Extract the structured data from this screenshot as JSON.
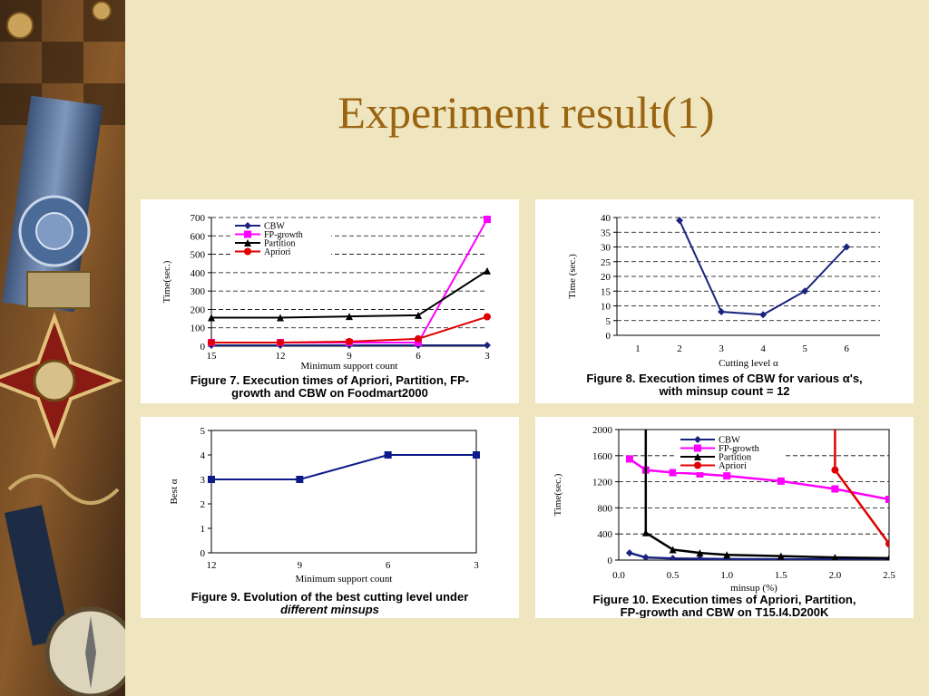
{
  "slide": {
    "title": "Experiment result(1)"
  },
  "colors": {
    "background": "#efe6c0",
    "title": "#9a6410",
    "cbw": "#1a237e",
    "fpgrowth": "#ff00ff",
    "partition": "#000000",
    "apriori": "#e00000",
    "fig8_line": "#1a237e",
    "fig9_line": "#0d1a8a"
  },
  "decor": {
    "side_art": "vintage medal, ribbon and compass collage"
  },
  "chart_data": [
    {
      "type": "line",
      "caption": [
        "Figure 7. Execution times of Apriori, Partition, FP-",
        "growth and CBW on Foodmart2000"
      ],
      "xlabel": "Minimum support count",
      "ylabel": "Time(sec.)",
      "categories": [
        "15",
        "12",
        "9",
        "6",
        "3"
      ],
      "ylim": [
        0,
        700
      ],
      "yticks": [
        "0",
        "100",
        "200",
        "300",
        "400",
        "500",
        "600",
        "700"
      ],
      "grid": "dashed horizontal",
      "legend": "top-left",
      "series": [
        {
          "name": "CBW",
          "marker": "diamond",
          "values": [
            5,
            5,
            5,
            5,
            5
          ]
        },
        {
          "name": "FP-growth",
          "marker": "square",
          "values": [
            20,
            20,
            20,
            20,
            690
          ]
        },
        {
          "name": "Partition",
          "marker": "triangle",
          "values": [
            155,
            155,
            162,
            168,
            410
          ]
        },
        {
          "name": "Apriori",
          "marker": "circle",
          "values": [
            20,
            20,
            25,
            40,
            160
          ]
        }
      ]
    },
    {
      "type": "line",
      "caption": [
        "Figure 8. Execution times of CBW for various α's,",
        "with minsup count = 12"
      ],
      "xlabel": "Cutting level α",
      "ylabel": "Time (sec.)",
      "categories": [
        "1",
        "2",
        "3",
        "4",
        "5",
        "6"
      ],
      "ylim": [
        0,
        40
      ],
      "yticks": [
        "0",
        "5",
        "10",
        "15",
        "20",
        "25",
        "30",
        "35",
        "40"
      ],
      "grid": "dashed horizontal",
      "series": [
        {
          "marker": "diamond",
          "x": [
            "2",
            "3",
            "4",
            "5",
            "6"
          ],
          "values": [
            39,
            8,
            7,
            15,
            30
          ]
        }
      ]
    },
    {
      "type": "line",
      "caption": [
        "Figure 9. Evolution of the best cutting level under",
        "different minsups"
      ],
      "xlabel": "Minimum support count",
      "ylabel": "Best α",
      "categories": [
        "12",
        "9",
        "6",
        "3"
      ],
      "ylim": [
        0,
        5
      ],
      "yticks": [
        "0",
        "1",
        "2",
        "3",
        "4",
        "5"
      ],
      "grid": "none",
      "series": [
        {
          "marker": "square",
          "values": [
            3,
            3,
            4,
            4
          ]
        }
      ]
    },
    {
      "type": "line",
      "caption": [
        "Figure 10. Execution times of Apriori, Partition,",
        "FP-growth and CBW on T15.I4.D200K"
      ],
      "xlabel": "minsup (%)",
      "ylabel": "Time(sec.)",
      "xlim": [
        0,
        2.5
      ],
      "xticks": [
        "0.0",
        "0.5",
        "1.0",
        "1.5",
        "2.0",
        "2.5"
      ],
      "ylim": [
        0,
        2000
      ],
      "yticks": [
        "0",
        "400",
        "800",
        "1200",
        "1600",
        "2000"
      ],
      "grid": "dashed horizontal",
      "legend": "top-center",
      "series": [
        {
          "name": "CBW",
          "marker": "diamond",
          "x": [
            0.1,
            0.25,
            0.5,
            0.75,
            1.0,
            1.5,
            2.0,
            2.5
          ],
          "values": [
            110,
            40,
            25,
            20,
            15,
            12,
            10,
            8
          ]
        },
        {
          "name": "FP-growth",
          "marker": "square",
          "x": [
            0.1,
            0.25,
            0.5,
            0.75,
            1.0,
            1.5,
            2.0,
            2.5
          ],
          "values": [
            1550,
            1380,
            1340,
            1320,
            1290,
            1210,
            1090,
            930
          ]
        },
        {
          "name": "Partition",
          "marker": "triangle",
          "x": [
            0.25,
            0.25,
            0.5,
            0.75,
            1.0,
            1.5,
            2.0,
            2.5
          ],
          "values": [
            2000,
            420,
            160,
            110,
            80,
            60,
            40,
            30
          ]
        },
        {
          "name": "Apriori",
          "marker": "circle",
          "x": [
            2.0,
            2.0,
            2.5
          ],
          "values": [
            2000,
            1380,
            250
          ]
        }
      ]
    }
  ]
}
